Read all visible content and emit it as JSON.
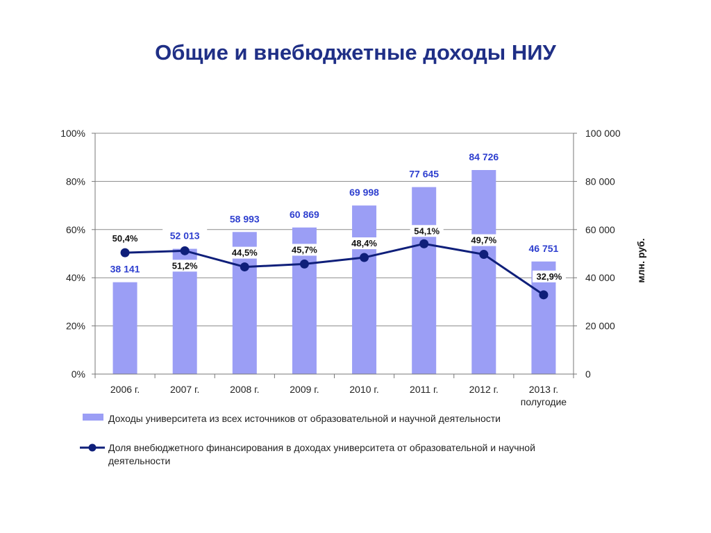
{
  "page": {
    "title": "Общие и внебюджетные доходы НИУ"
  },
  "chart_data": {
    "type": "bar",
    "categories": [
      [
        "2006 г."
      ],
      [
        "2007 г."
      ],
      [
        "2008 г."
      ],
      [
        "2009 г."
      ],
      [
        "2010 г."
      ],
      [
        "2011 г."
      ],
      [
        "2012 г."
      ],
      [
        "2013 г.",
        "полугодие"
      ]
    ],
    "series": [
      {
        "name": "Доходы университета из всех источников от образовательной и научной деятельности",
        "type": "bar",
        "axis": "right",
        "values": [
          38141,
          52013,
          58993,
          60869,
          69998,
          77645,
          84726,
          46751
        ],
        "labels": [
          "38 141",
          "52 013",
          "58 993",
          "60 869",
          "69 998",
          "77 645",
          "84 726",
          "46 751"
        ],
        "color": "#9b9ef5"
      },
      {
        "name": "Доля внебюджетного финансирования в доходах университета от образовательной и научной деятельности",
        "type": "line",
        "axis": "left",
        "values": [
          50.4,
          51.2,
          44.5,
          45.7,
          48.4,
          54.1,
          49.7,
          32.9
        ],
        "labels": [
          "50,4%",
          "51,2%",
          "44,5%",
          "45,7%",
          "48,4%",
          "54,1%",
          "49,7%",
          "32,9%"
        ],
        "color": "#0f1f7a"
      }
    ],
    "y_left": {
      "range": [
        0,
        100
      ],
      "ticks": [
        0,
        20,
        40,
        60,
        80,
        100
      ],
      "tick_labels": [
        "0%",
        "20%",
        "40%",
        "60%",
        "80%",
        "100%"
      ]
    },
    "y_right": {
      "range": [
        0,
        100000
      ],
      "ticks": [
        0,
        20000,
        40000,
        60000,
        80000,
        100000
      ],
      "tick_labels": [
        "0",
        "20 000",
        "40 000",
        "60 000",
        "80 000",
        "100 000"
      ],
      "label": "млн. руб."
    },
    "grid": true,
    "legend_position": "bottom",
    "legend": [
      "Доходы университета из всех источников от образовательной и научной деятельности",
      [
        "Доля внебюджетного финансирования в доходах университета от образовательной и научной",
        "деятельности"
      ]
    ]
  }
}
